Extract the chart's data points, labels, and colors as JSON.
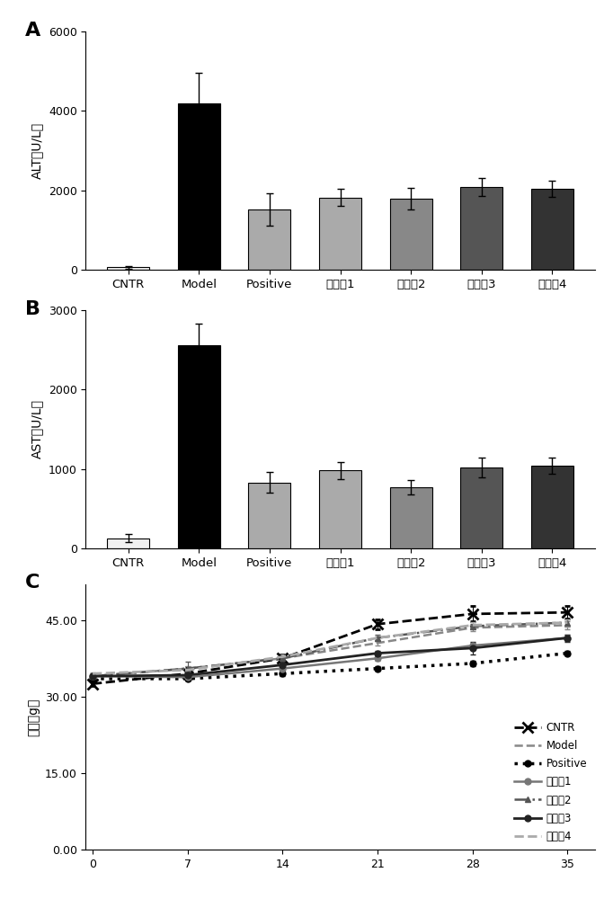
{
  "panel_A": {
    "categories": [
      "CNTR",
      "Model",
      "Positive",
      "实施她1",
      "实施她2",
      "实施她3",
      "实施她4"
    ],
    "values": [
      60,
      4200,
      1520,
      1820,
      1790,
      2080,
      2040
    ],
    "errors": [
      30,
      750,
      400,
      210,
      270,
      230,
      210
    ],
    "colors": [
      "#f0f0f0",
      "#000000",
      "#aaaaaa",
      "#aaaaaa",
      "#888888",
      "#555555",
      "#333333"
    ],
    "ylabel": "ALT（U/L）",
    "ylim": [
      0,
      6000
    ],
    "yticks": [
      0,
      2000,
      4000,
      6000
    ],
    "label": "A"
  },
  "panel_B": {
    "categories": [
      "CNTR",
      "Model",
      "Positive",
      "实施她1",
      "实施她2",
      "实施她3",
      "实施她4"
    ],
    "values": [
      130,
      2560,
      830,
      980,
      770,
      1020,
      1040
    ],
    "errors": [
      50,
      270,
      130,
      110,
      90,
      120,
      100
    ],
    "colors": [
      "#f0f0f0",
      "#000000",
      "#aaaaaa",
      "#aaaaaa",
      "#888888",
      "#555555",
      "#333333"
    ],
    "ylabel": "AST（U/L）",
    "ylim": [
      0,
      3000
    ],
    "yticks": [
      0,
      1000,
      2000,
      3000
    ],
    "label": "B"
  },
  "panel_C": {
    "xlabel": "",
    "ylabel": "体重（g）",
    "ylim": [
      0,
      52
    ],
    "yticks": [
      0.0,
      15.0,
      30.0,
      45.0
    ],
    "ytick_labels": [
      "0.00",
      "15.00",
      "30.00",
      "45.00"
    ],
    "xlim": [
      -0.5,
      37
    ],
    "xticks": [
      0,
      7,
      14,
      21,
      28,
      35
    ],
    "label": "C",
    "series": {
      "CNTR": {
        "x": [
          0,
          7,
          14,
          21,
          28,
          35
        ],
        "y": [
          32.5,
          34.5,
          37.5,
          44.2,
          46.2,
          46.5
        ],
        "yerr": [
          0.4,
          1.2,
          0.8,
          1.0,
          1.5,
          1.2
        ],
        "color": "#000000",
        "linestyle": "--",
        "marker": "x",
        "markersize": 8,
        "markeredgewidth": 2,
        "linewidth": 2.0,
        "label": "CNTR"
      },
      "Model": {
        "x": [
          0,
          7,
          14,
          21,
          28,
          35
        ],
        "y": [
          34.0,
          35.5,
          37.5,
          40.5,
          43.5,
          44.0
        ],
        "yerr": [
          0.3,
          0.4,
          0.5,
          0.5,
          0.6,
          0.8
        ],
        "color": "#888888",
        "linestyle": "--",
        "marker": "None",
        "markersize": 0,
        "markeredgewidth": 1,
        "linewidth": 1.8,
        "label": "Model"
      },
      "Positive": {
        "x": [
          0,
          7,
          14,
          21,
          28,
          35
        ],
        "y": [
          33.5,
          33.5,
          34.5,
          35.5,
          36.5,
          38.5
        ],
        "yerr": [
          0.3,
          0.3,
          0.4,
          0.4,
          0.5,
          0.5
        ],
        "color": "#000000",
        "linestyle": ":",
        "marker": "o",
        "markersize": 5,
        "markeredgewidth": 1,
        "linewidth": 2.5,
        "label": "Positive"
      },
      "实施她1": {
        "x": [
          0,
          7,
          14,
          21,
          28,
          35
        ],
        "y": [
          34.0,
          33.8,
          35.5,
          37.5,
          40.0,
          41.5
        ],
        "yerr": [
          0.3,
          0.3,
          0.4,
          0.4,
          0.5,
          0.6
        ],
        "color": "#777777",
        "linestyle": "-",
        "marker": "o",
        "markersize": 5,
        "markeredgewidth": 1,
        "linewidth": 1.8,
        "label": "实施她1"
      },
      "实施她2": {
        "x": [
          0,
          7,
          14,
          21,
          28,
          35
        ],
        "y": [
          34.0,
          35.5,
          37.5,
          41.5,
          43.8,
          44.5
        ],
        "yerr": [
          0.3,
          1.4,
          0.6,
          0.6,
          0.5,
          0.7
        ],
        "color": "#555555",
        "linestyle": "-.",
        "marker": "^",
        "markersize": 5,
        "markeredgewidth": 1,
        "linewidth": 1.8,
        "label": "实施她2"
      },
      "实施她3": {
        "x": [
          0,
          7,
          14,
          21,
          28,
          35
        ],
        "y": [
          34.0,
          34.2,
          36.2,
          38.5,
          39.5,
          41.5
        ],
        "yerr": [
          0.3,
          0.3,
          0.4,
          0.5,
          1.2,
          0.7
        ],
        "color": "#222222",
        "linestyle": "-",
        "marker": "o",
        "markersize": 5,
        "markeredgewidth": 1,
        "linewidth": 2.0,
        "label": "实施她3"
      },
      "实施她4": {
        "x": [
          0,
          7,
          14,
          21,
          28,
          35
        ],
        "y": [
          34.5,
          35.2,
          37.8,
          41.5,
          44.0,
          44.5
        ],
        "yerr": [
          0.3,
          0.3,
          0.4,
          0.5,
          0.6,
          0.7
        ],
        "color": "#aaaaaa",
        "linestyle": "--",
        "marker": "None",
        "markersize": 0,
        "markeredgewidth": 1,
        "linewidth": 2.0,
        "label": "实施她4"
      }
    },
    "series_order": [
      "CNTR",
      "Model",
      "Positive",
      "实施她1",
      "实施她2",
      "实施她3",
      "实施她4"
    ]
  },
  "background_color": "#ffffff",
  "bar_edge_color": "#000000",
  "error_cap_size": 3
}
